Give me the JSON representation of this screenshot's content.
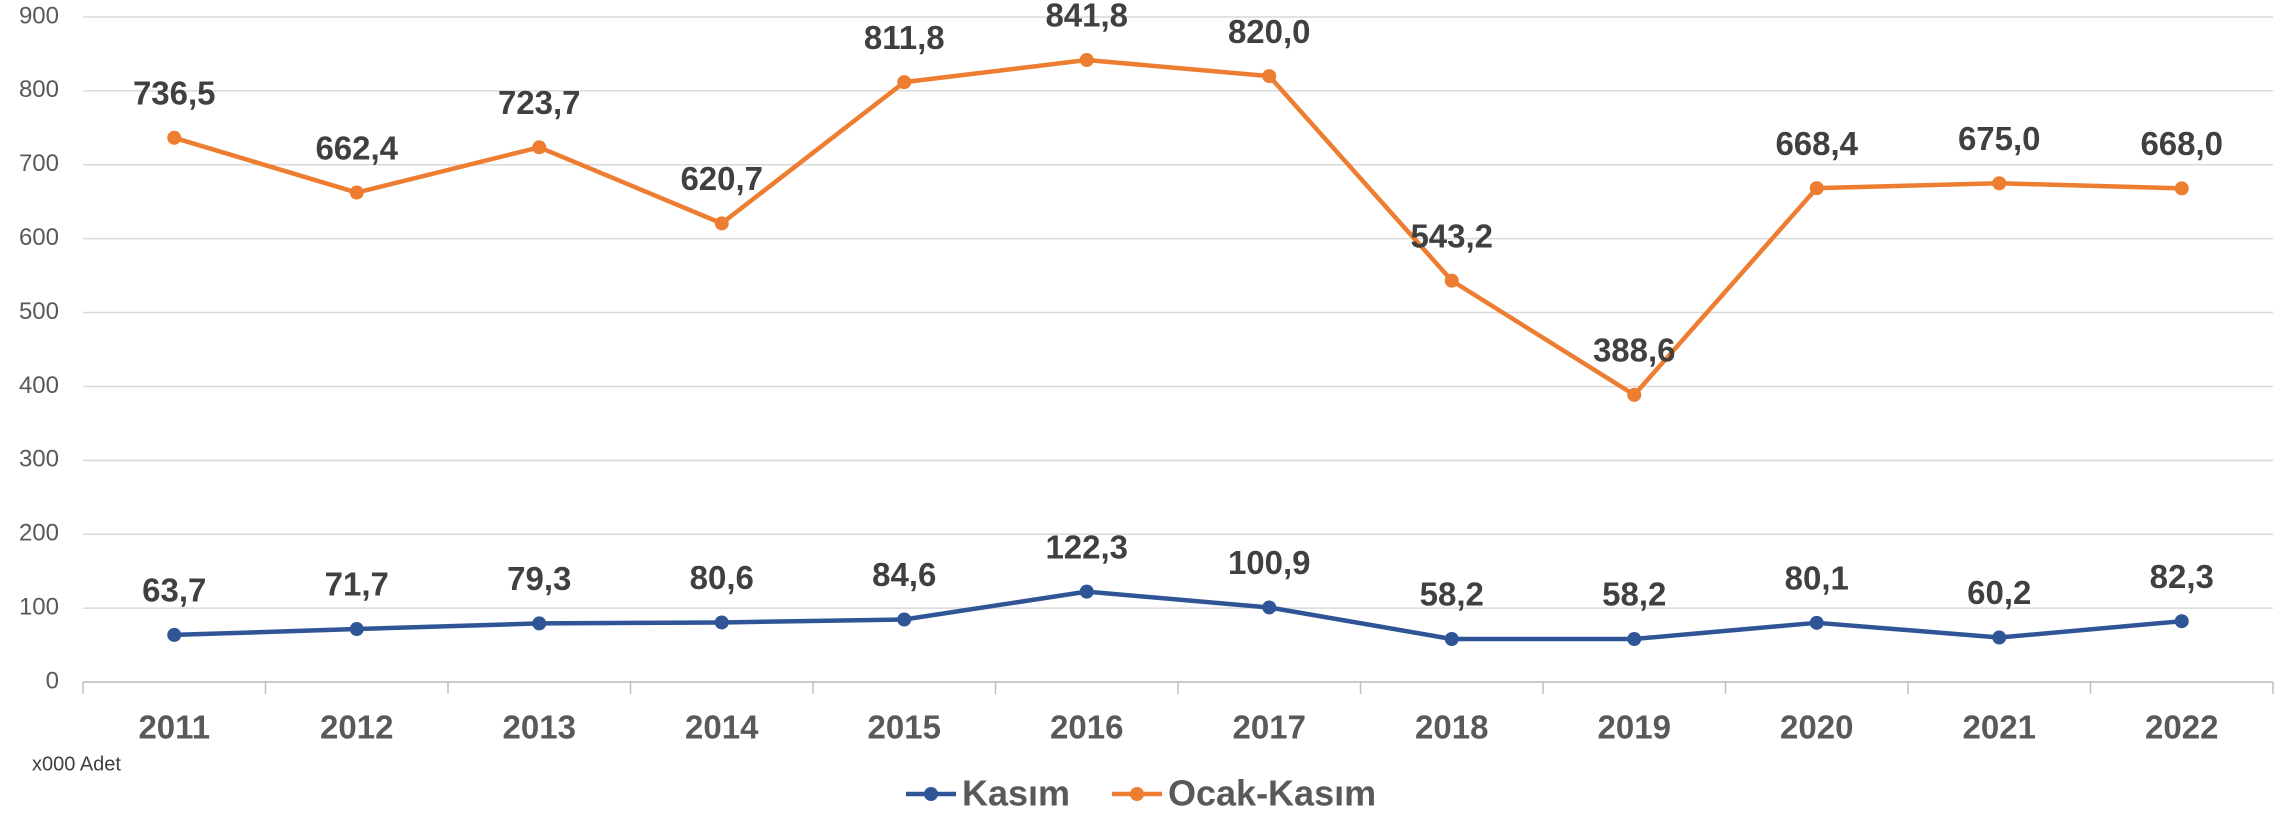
{
  "chart_data": {
    "type": "line",
    "categories": [
      "2011",
      "2012",
      "2013",
      "2014",
      "2015",
      "2016",
      "2017",
      "2018",
      "2019",
      "2020",
      "2021",
      "2022"
    ],
    "series": [
      {
        "name": "Kasım",
        "color": "#2f5597",
        "values": [
          63.7,
          71.7,
          79.3,
          80.6,
          84.6,
          122.3,
          100.9,
          58.2,
          58.2,
          80.1,
          60.2,
          82.3
        ],
        "value_labels": [
          "63,7",
          "71,7",
          "79,3",
          "80,6",
          "84,6",
          "122,3",
          "100,9",
          "58,2",
          "58,2",
          "80,1",
          "60,2",
          "82,3"
        ]
      },
      {
        "name": "Ocak-Kasım",
        "color": "#ed7d31",
        "values": [
          736.5,
          662.4,
          723.7,
          620.7,
          811.8,
          841.8,
          820.0,
          543.2,
          388.6,
          668.4,
          675.0,
          668.0
        ],
        "value_labels": [
          "736,5",
          "662,4",
          "723,7",
          "620,7",
          "811,8",
          "841,8",
          "820,0",
          "543,2",
          "388,6",
          "668,4",
          "675,0",
          "668,0"
        ]
      }
    ],
    "ylim": [
      0,
      900
    ],
    "yticks": [
      0,
      100,
      200,
      300,
      400,
      500,
      600,
      700,
      800,
      900
    ],
    "grid": true,
    "legend": "bottom",
    "note": "x000 Adet"
  }
}
